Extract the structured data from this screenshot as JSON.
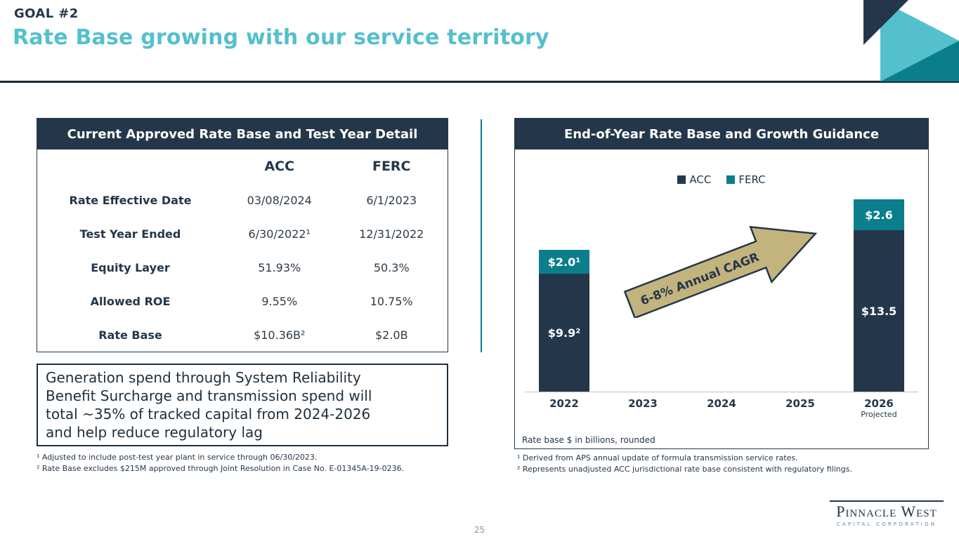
{
  "header": {
    "kicker": "GOAL #2",
    "title": "Rate Base growing with our service territory"
  },
  "left_panel": {
    "title": "Current Approved Rate Base and Test Year Detail",
    "col_acc": "ACC",
    "col_ferc": "FERC",
    "rows": [
      {
        "label": "Rate Effective Date",
        "acc": "03/08/2024",
        "ferc": "6/1/2023"
      },
      {
        "label": "Test Year Ended",
        "acc": "6/30/2022¹",
        "ferc": "12/31/2022"
      },
      {
        "label": "Equity Layer",
        "acc": "51.93%",
        "ferc": "50.3%"
      },
      {
        "label": "Allowed ROE",
        "acc": "9.55%",
        "ferc": "10.75%"
      },
      {
        "label": "Rate Base",
        "acc": "$10.36B²",
        "ferc": "$2.0B"
      }
    ],
    "callout": "Generation spend through System Reliability\nBenefit Surcharge and transmission spend will\ntotal ~35% of tracked capital from 2024-2026\nand help reduce regulatory lag",
    "footnotes": [
      "¹ Adjusted to include post-test year plant in service through 06/30/2023.",
      "² Rate Base excludes $215M approved through Joint Resolution in Case No. E-01345A-19-0236."
    ]
  },
  "right_panel": {
    "title": "End-of-Year Rate Base and Growth Guidance",
    "note": "Rate base $ in billions, rounded",
    "footnotes": [
      "¹ Derived from APS annual update of formula transmission service rates.",
      "² Represents unadjusted ACC jurisdictional rate base consistent with regulatory filings."
    ]
  },
  "chart_data": {
    "type": "bar",
    "stacked": true,
    "title": "End-of-Year Rate Base and Growth Guidance",
    "unit_note": "Rate base $ in billions, rounded",
    "categories": [
      "2022",
      "2023",
      "2024",
      "2025",
      "2026"
    ],
    "x_sublabels": [
      "",
      "",
      "",
      "",
      "Projected"
    ],
    "series": [
      {
        "name": "ACC",
        "color": "#24374A",
        "values": [
          9.9,
          null,
          null,
          null,
          13.5
        ],
        "labels": [
          "$9.9²",
          "",
          "",
          "",
          "$13.5"
        ]
      },
      {
        "name": "FERC",
        "color": "#0B7E8C",
        "values": [
          2.0,
          null,
          null,
          null,
          2.6
        ],
        "labels": [
          "$2.0¹",
          "",
          "",
          "",
          "$2.6"
        ]
      }
    ],
    "annotation": "6-8% Annual CAGR",
    "legend_position": "top",
    "grid": false,
    "ylim": [
      0,
      18
    ],
    "y_axis_hidden": true
  },
  "footer": {
    "page_number": "25",
    "logo_line1": "Pinnacle West",
    "logo_line2": "CAPITAL CORPORATION"
  },
  "colors": {
    "navy": "#24374A",
    "teal": "#0B7E8C",
    "light_teal": "#54C0CD",
    "arrow_tan": "#C3B37D"
  }
}
